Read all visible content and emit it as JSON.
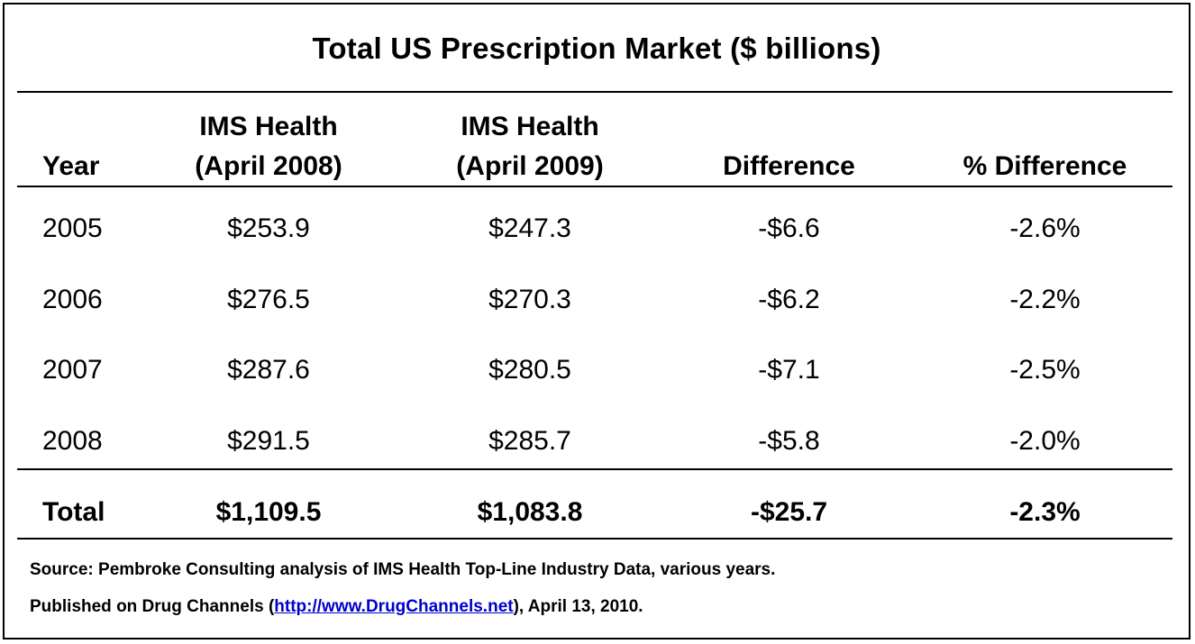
{
  "chart_data": {
    "type": "table",
    "title": "Total US Prescription Market ($ billions)",
    "columns": [
      "Year",
      "IMS Health\n(April 2008)",
      "IMS Health\n(April 2009)",
      "Difference",
      "% Difference"
    ],
    "column_lines": [
      [
        "Year"
      ],
      [
        "IMS Health",
        "(April 2008)"
      ],
      [
        "IMS Health",
        "(April 2009)"
      ],
      [
        "Difference"
      ],
      [
        "% Difference"
      ]
    ],
    "rows": [
      {
        "year": "2005",
        "ims_2008": "$253.9",
        "ims_2009": "$247.3",
        "difference": "-$6.6",
        "pct_difference": "-2.6%"
      },
      {
        "year": "2006",
        "ims_2008": "$276.5",
        "ims_2009": "$270.3",
        "difference": "-$6.2",
        "pct_difference": "-2.2%"
      },
      {
        "year": "2007",
        "ims_2008": "$287.6",
        "ims_2009": "$280.5",
        "difference": "-$7.1",
        "pct_difference": "-2.5%"
      },
      {
        "year": "2008",
        "ims_2008": "$291.5",
        "ims_2009": "$285.7",
        "difference": "-$5.8",
        "pct_difference": "-2.0%"
      }
    ],
    "total": {
      "year": "Total",
      "ims_2008": "$1,109.5",
      "ims_2009": "$1,083.8",
      "difference": "-$25.7",
      "pct_difference": "-2.3%"
    }
  },
  "footer": {
    "source": "Source: Pembroke Consulting analysis of IMS Health Top-Line Industry Data, various years.",
    "published_prefix": "Published on Drug Channels (",
    "published_link": "http://www.DrugChannels.net",
    "published_suffix": "), April 13, 2010."
  },
  "colors": {
    "text": "#000000",
    "link": "#0000cc",
    "background": "#ffffff"
  }
}
